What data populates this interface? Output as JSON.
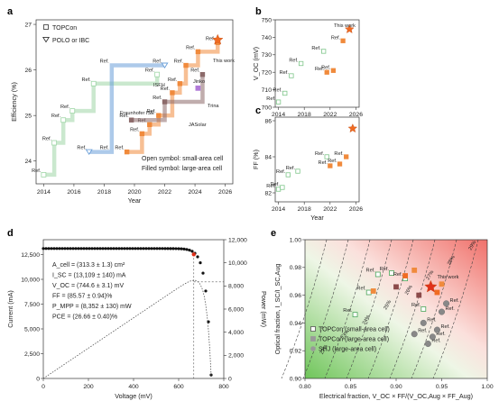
{
  "panels": {
    "a": "a",
    "b": "b",
    "c": "c",
    "d": "d",
    "e": "e"
  },
  "legend_a": {
    "topcon": "TOPCon",
    "polo": "POLO or IBC"
  },
  "labels_a": {
    "isfh": "ISFH",
    "fraunhofer": "Fraunhofer ISE",
    "jinko": "Jinko",
    "trina": "Trina",
    "jasolar": "JASolar",
    "this_work": "This work",
    "open_note": "Open symbol: small-area cell",
    "filled_note": "Filled symbol: large-area cell"
  },
  "labels_bc": {
    "this_work_b": "This work"
  },
  "d_params": [
    "A_cell = (313.3 ± 1.3) cm²",
    "I_SC = (13,109 ± 140) mA",
    "V_OC = (744.6 ± 3.1) mV",
    "FF = (85.57 ± 0.94)%",
    "P_MPP = (8,352 ± 130) mW",
    "PCE = (26.66 ± 0.40)%"
  ],
  "e_legend": [
    "TOPCon (small-area cell)",
    "TOPCon (large-area cell)",
    "SHJ (large-area cell)"
  ],
  "e_this_work": "This work",
  "e_contours": [
    "29%",
    "28%",
    "27%",
    "26%",
    "25%",
    "24%",
    "23%",
    "22%"
  ],
  "chart_data": [
    {
      "panel": "a",
      "type": "line",
      "xlabel": "Year",
      "ylabel": "Efficiency (%)",
      "xlim": [
        2013.5,
        2026.5
      ],
      "ylim": [
        23.5,
        27.1
      ],
      "xticks": [
        "2014",
        "2016",
        "2018",
        "2020",
        "2022",
        "2024",
        "2026"
      ],
      "yticks": [
        "24",
        "25",
        "26",
        "27"
      ],
      "series": [
        {
          "name": "Fraunhofer ISE",
          "color": "#9ed6a6",
          "x": [
            2014,
            2014.7,
            2015.3,
            2015.9,
            2017.3,
            2021.5
          ],
          "y": [
            23.7,
            24.4,
            24.9,
            25.1,
            25.7,
            25.9
          ]
        },
        {
          "name": "ISFH",
          "color": "#6a9fd8",
          "x": [
            2017,
            2018.5,
            2018.5,
            2022
          ],
          "y": [
            24.2,
            24.2,
            26.1,
            26.1
          ]
        },
        {
          "name": "Jinko",
          "color": "#f08a3c",
          "x": [
            2019.5,
            2020.5,
            2021,
            2021.6,
            2022.5,
            2023,
            2023.4,
            2024.2,
            2025.5
          ],
          "y": [
            24.2,
            24.6,
            24.8,
            25.0,
            25.5,
            25.7,
            26.1,
            26.4,
            26.6
          ]
        },
        {
          "name": "Trina",
          "color": "#8c6a6a",
          "x": [
            2019.8,
            2022,
            2024.5
          ],
          "y": [
            24.9,
            25.3,
            25.9
          ]
        },
        {
          "name": "JASolar",
          "color": "#b07ad8",
          "x": [
            2024.2
          ],
          "y": [
            25.6
          ]
        },
        {
          "name": "This work",
          "color": "#f06b22",
          "x": [
            2025.5
          ],
          "y": [
            26.66
          ]
        }
      ]
    },
    {
      "panel": "b",
      "type": "scatter",
      "xlabel": "",
      "ylabel": "V_OC (mV)",
      "xlim": [
        2013.5,
        2026.5
      ],
      "ylim": [
        700,
        750
      ],
      "xticks": [
        "2014",
        "2018",
        "2022",
        "2026"
      ],
      "yticks": [
        "700",
        "710",
        "720",
        "730",
        "740",
        "750"
      ],
      "x": [
        2014,
        2015,
        2016,
        2017.5,
        2021,
        2021.5,
        2022.5,
        2024,
        2025
      ],
      "y": [
        703,
        708,
        718,
        725,
        732,
        720,
        721,
        738,
        744.6
      ]
    },
    {
      "panel": "c",
      "type": "scatter",
      "xlabel": "Year",
      "ylabel": "FF (%)",
      "xlim": [
        2013.5,
        2026.5
      ],
      "ylim": [
        81.5,
        86.2
      ],
      "xticks": [
        "2014",
        "2018",
        "2022",
        "2026"
      ],
      "yticks": [
        "82",
        "84",
        "86"
      ],
      "x": [
        2014,
        2014.6,
        2015.5,
        2017,
        2021.5,
        2022,
        2023.5,
        2024.5,
        2025.5
      ],
      "y": [
        82.2,
        82.3,
        83,
        83.2,
        84,
        83.5,
        83.6,
        84,
        85.57
      ]
    },
    {
      "panel": "d",
      "type": "line",
      "xlabel": "Voltage (mV)",
      "ylabel": "Current (mA)",
      "ylabel2": "Power (mW)",
      "xlim": [
        0,
        800
      ],
      "ylim": [
        0,
        14000
      ],
      "y2lim": [
        0,
        12000
      ],
      "xticks": [
        "0",
        "200",
        "400",
        "600",
        "800"
      ],
      "yticks": [
        "0",
        "2,500",
        "5,000",
        "7,500",
        "10,000",
        "12,500"
      ],
      "y2ticks": [
        "0",
        "2,000",
        "4,000",
        "6,000",
        "8,000",
        "10,000",
        "12,000"
      ],
      "mpp": {
        "v": 667,
        "i": 12520,
        "p": 8352
      }
    },
    {
      "panel": "e",
      "type": "scatter",
      "xlabel": "Electrical fraction, V_OC × FF/(V_OC,Aug × FF_Aug)",
      "ylabel": "Optical fraction, I_SC/I_SC,Aug",
      "xlim": [
        0.8,
        1.0
      ],
      "ylim": [
        0.9,
        1.0
      ],
      "xticks": [
        "0.80",
        "0.85",
        "0.90",
        "0.95",
        "1.00"
      ],
      "yticks": [
        "0.90",
        "0.92",
        "0.94",
        "0.96",
        "0.98",
        "1.00"
      ],
      "series": [
        {
          "name": "TOPCon (small-area cell)",
          "x": [
            0.855,
            0.87,
            0.88,
            0.895,
            0.91,
            0.93
          ],
          "y": [
            0.946,
            0.962,
            0.975,
            0.976,
            0.972,
            0.95
          ]
        },
        {
          "name": "TOPCon (large-area cell)",
          "x": [
            0.875,
            0.9,
            0.91,
            0.92,
            0.925,
            0.945,
            0.95
          ],
          "y": [
            0.963,
            0.966,
            0.974,
            0.978,
            0.96,
            0.962,
            0.968
          ]
        },
        {
          "name": "SHJ (large-area cell)",
          "x": [
            0.92,
            0.93,
            0.935,
            0.94,
            0.945,
            0.95,
            0.955
          ],
          "y": [
            0.932,
            0.94,
            0.925,
            0.93,
            0.935,
            0.948,
            0.954
          ]
        },
        {
          "name": "This work",
          "x": [
            0.938
          ],
          "y": [
            0.966
          ]
        }
      ]
    }
  ]
}
